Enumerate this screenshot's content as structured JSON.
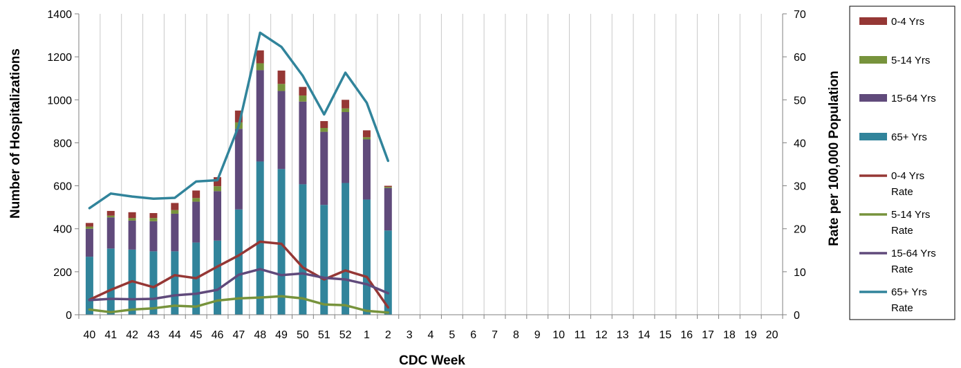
{
  "chart_data": {
    "type": "bar",
    "stacked": true,
    "xlabel": "CDC Week",
    "ylabel": "Number of Hospitalizations",
    "y2label": "Rate per 100,000 Population",
    "ylim": [
      0,
      1400
    ],
    "y2lim": [
      0,
      70
    ],
    "yticks": [
      0,
      200,
      400,
      600,
      800,
      1000,
      1200,
      1400
    ],
    "y2ticks": [
      0,
      10,
      20,
      30,
      40,
      50,
      60,
      70
    ],
    "grid": "vertical",
    "legend_position": "right",
    "categories": [
      "40",
      "41",
      "42",
      "43",
      "44",
      "45",
      "46",
      "47",
      "48",
      "49",
      "50",
      "51",
      "52",
      "1",
      "2",
      "3",
      "4",
      "5",
      "6",
      "7",
      "8",
      "9",
      "10",
      "11",
      "12",
      "13",
      "14",
      "15",
      "16",
      "17",
      "18",
      "19",
      "20"
    ],
    "bar_series": [
      {
        "name": "65+ Yrs",
        "color": "#31849b",
        "values": [
          270,
          308,
          303,
          295,
          295,
          336,
          345,
          490,
          713,
          678,
          607,
          511,
          613,
          536,
          392,
          null,
          null,
          null,
          null,
          null,
          null,
          null,
          null,
          null,
          null,
          null,
          null,
          null,
          null,
          null,
          null,
          null,
          null
        ]
      },
      {
        "name": "15-64 Yrs",
        "color": "#604a7b",
        "values": [
          130,
          145,
          135,
          140,
          175,
          190,
          230,
          375,
          425,
          363,
          385,
          340,
          330,
          280,
          198,
          null,
          null,
          null,
          null,
          null,
          null,
          null,
          null,
          null,
          null,
          null,
          null,
          null,
          null,
          null,
          null,
          null,
          null
        ]
      },
      {
        "name": "5-14 Yrs",
        "color": "#77933c",
        "values": [
          10,
          8,
          12,
          15,
          17,
          17,
          23,
          30,
          32,
          33,
          28,
          18,
          17,
          10,
          5,
          null,
          null,
          null,
          null,
          null,
          null,
          null,
          null,
          null,
          null,
          null,
          null,
          null,
          null,
          null,
          null,
          null,
          null
        ]
      },
      {
        "name": "0-4 Yrs",
        "color": "#953735",
        "values": [
          17,
          22,
          27,
          23,
          33,
          35,
          42,
          55,
          60,
          62,
          40,
          32,
          40,
          32,
          5,
          null,
          null,
          null,
          null,
          null,
          null,
          null,
          null,
          null,
          null,
          null,
          null,
          null,
          null,
          null,
          null,
          null,
          null
        ]
      }
    ],
    "line_series": [
      {
        "name": "0-4 Yrs Rate",
        "color": "#953735",
        "values": [
          3.5,
          5.8,
          7.8,
          6.4,
          9.2,
          8.5,
          11.2,
          13.8,
          17.0,
          16.5,
          11.0,
          8.2,
          10.3,
          8.8,
          1.7,
          null,
          null,
          null,
          null,
          null,
          null,
          null,
          null,
          null,
          null,
          null,
          null,
          null,
          null,
          null,
          null,
          null,
          null
        ]
      },
      {
        "name": "5-14 Yrs Rate",
        "color": "#77933c",
        "values": [
          1.2,
          0.6,
          1.2,
          1.5,
          2.1,
          1.9,
          3.3,
          3.8,
          4.0,
          4.3,
          3.8,
          2.4,
          2.2,
          0.9,
          0.5,
          null,
          null,
          null,
          null,
          null,
          null,
          null,
          null,
          null,
          null,
          null,
          null,
          null,
          null,
          null,
          null,
          null,
          null
        ]
      },
      {
        "name": "15-64 Yrs Rate",
        "color": "#604a7b",
        "values": [
          3.4,
          3.7,
          3.6,
          3.7,
          4.5,
          4.9,
          5.8,
          9.3,
          10.6,
          9.2,
          9.6,
          8.6,
          8.2,
          7.1,
          5.0,
          null,
          null,
          null,
          null,
          null,
          null,
          null,
          null,
          null,
          null,
          null,
          null,
          null,
          null,
          null,
          null,
          null,
          null
        ]
      },
      {
        "name": "65+ Yrs Rate",
        "color": "#31849b",
        "values": [
          24.8,
          28.2,
          27.5,
          27.0,
          27.2,
          31.0,
          31.3,
          44.0,
          65.6,
          62.3,
          55.6,
          46.6,
          56.3,
          49.3,
          35.8,
          null,
          null,
          null,
          null,
          null,
          null,
          null,
          null,
          null,
          null,
          null,
          null,
          null,
          null,
          null,
          null,
          null,
          null
        ]
      }
    ],
    "legend": [
      {
        "label_lines": [
          "0-4 Yrs"
        ],
        "kind": "bar",
        "color": "#953735"
      },
      {
        "label_lines": [
          "5-14 Yrs"
        ],
        "kind": "bar",
        "color": "#77933c"
      },
      {
        "label_lines": [
          "15-64 Yrs"
        ],
        "kind": "bar",
        "color": "#604a7b"
      },
      {
        "label_lines": [
          "65+ Yrs"
        ],
        "kind": "bar",
        "color": "#31849b"
      },
      {
        "label_lines": [
          "0-4 Yrs",
          "Rate"
        ],
        "kind": "line",
        "color": "#953735"
      },
      {
        "label_lines": [
          "5-14 Yrs",
          "Rate"
        ],
        "kind": "line",
        "color": "#77933c"
      },
      {
        "label_lines": [
          "15-64 Yrs",
          "Rate"
        ],
        "kind": "line",
        "color": "#604a7b"
      },
      {
        "label_lines": [
          "65+ Yrs",
          "Rate"
        ],
        "kind": "line",
        "color": "#31849b"
      }
    ]
  }
}
